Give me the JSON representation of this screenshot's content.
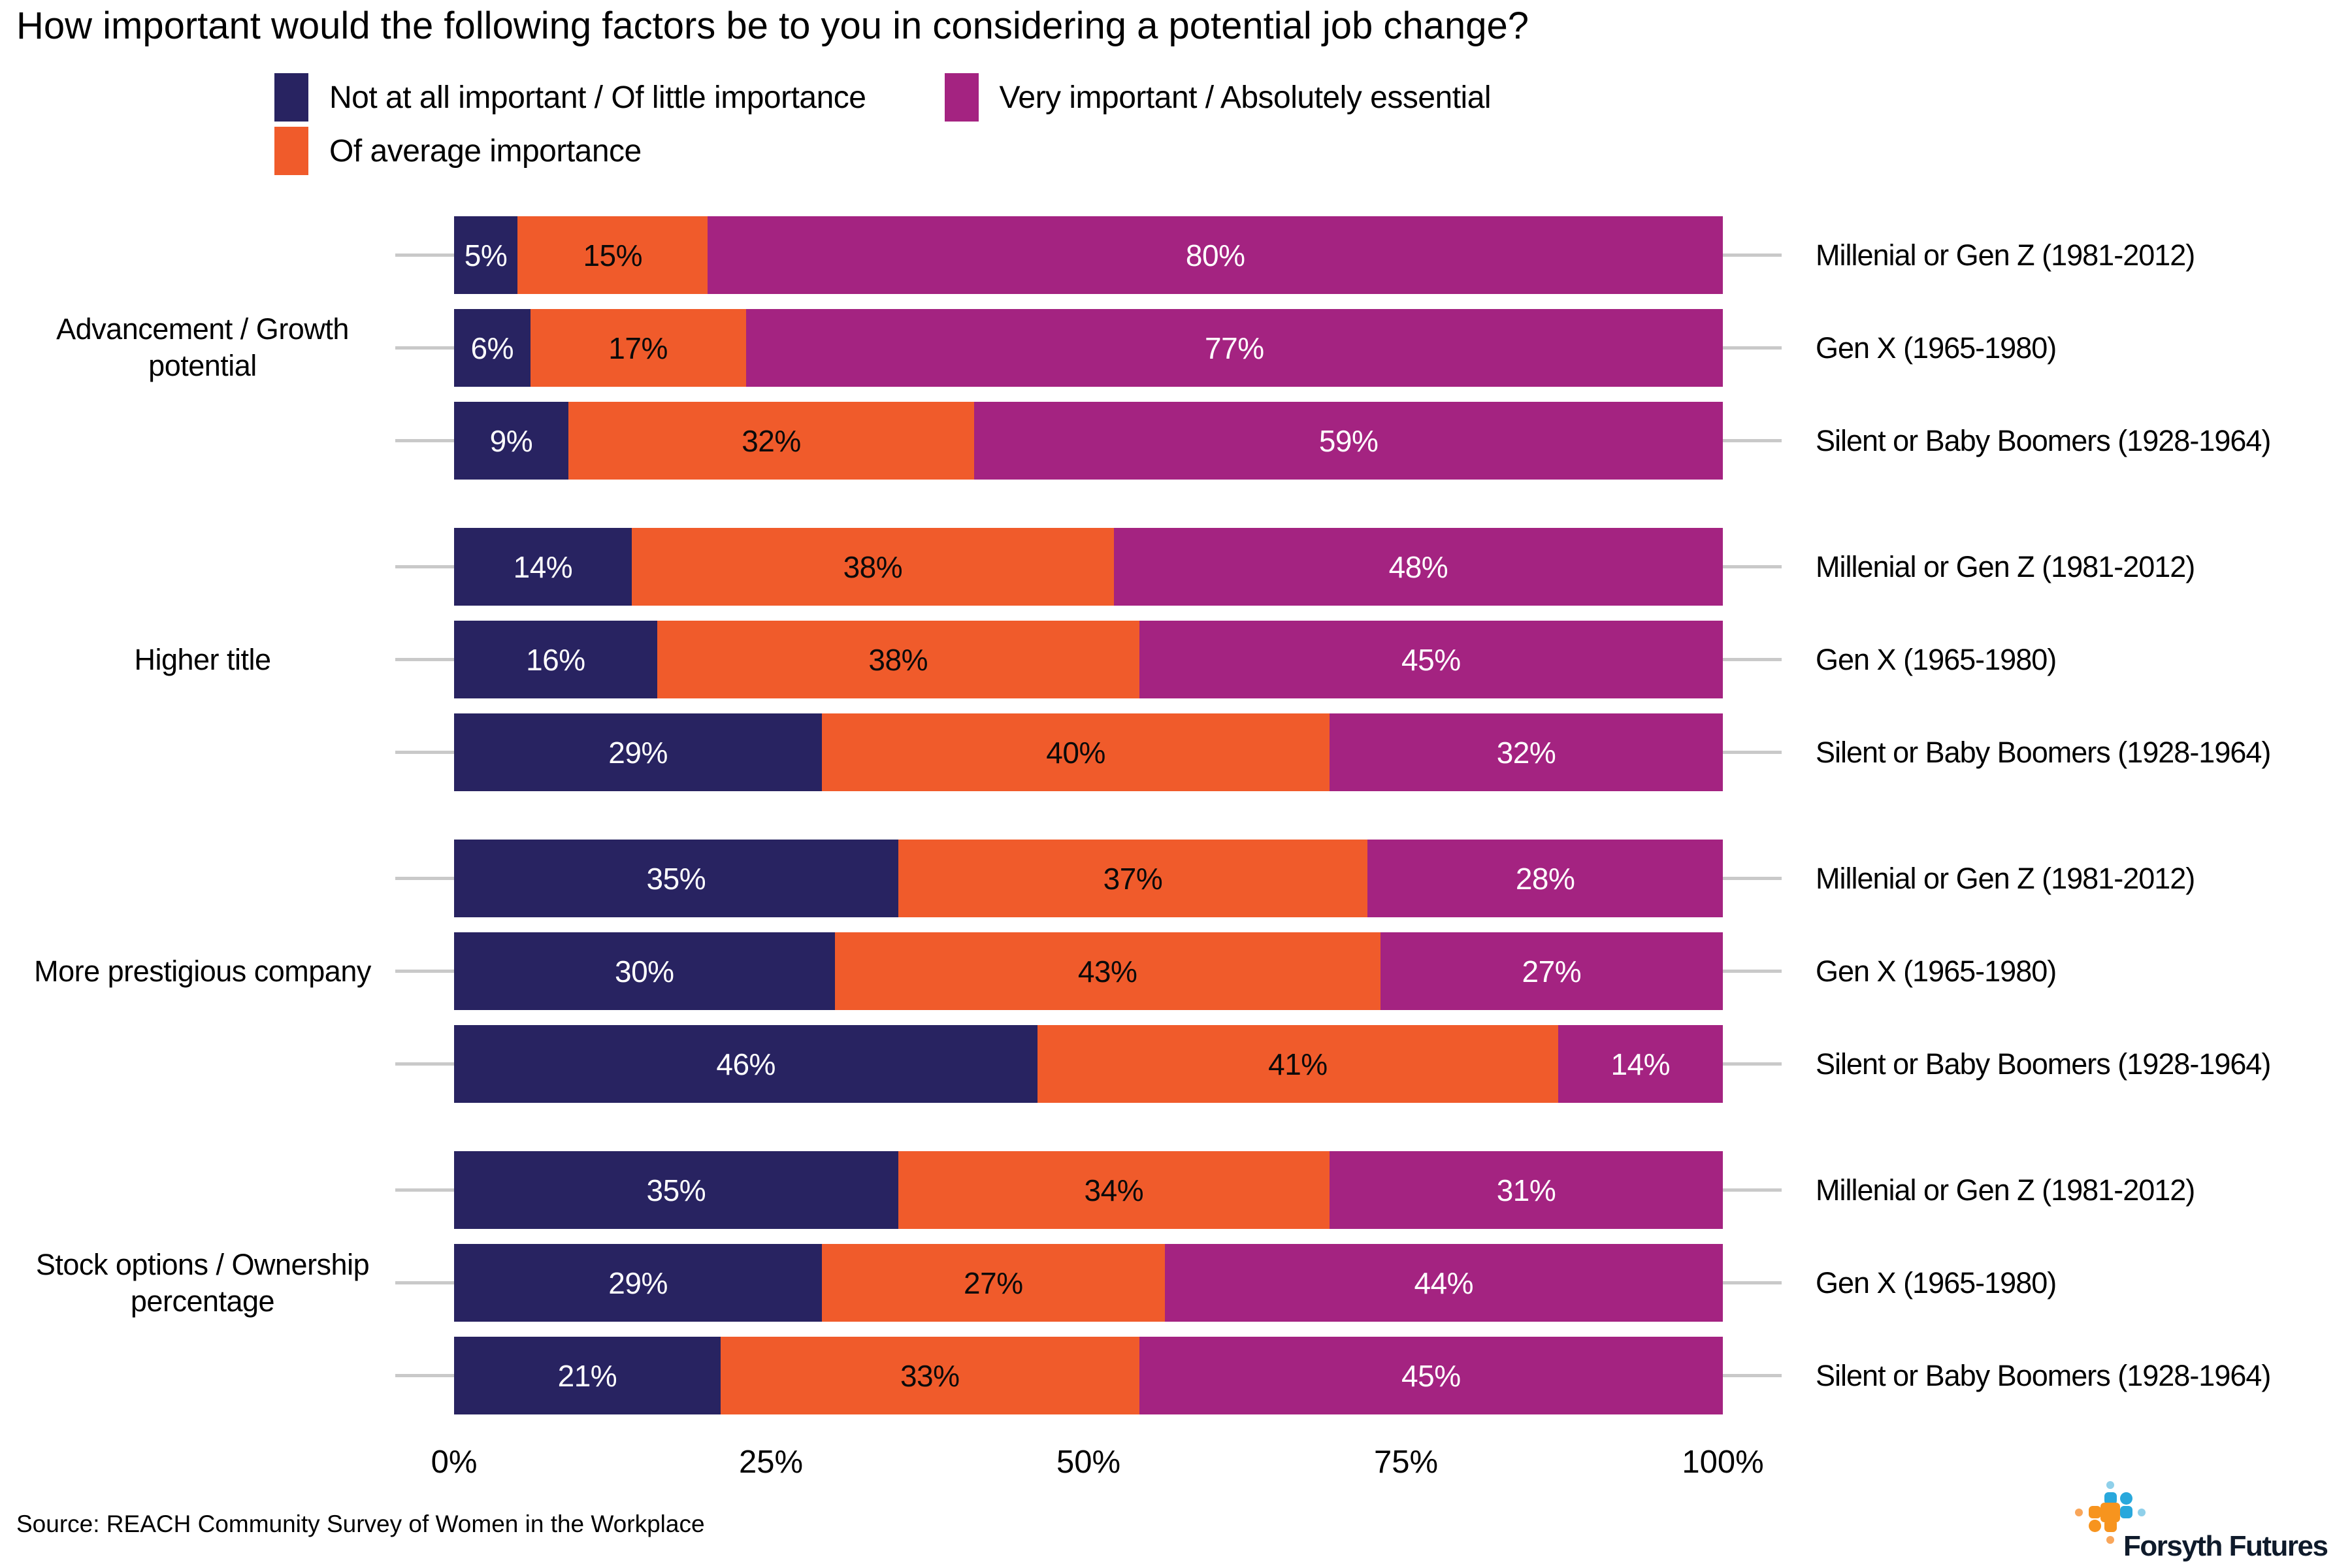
{
  "title": "How important would the following factors be to you in considering a potential job change?",
  "source": "Source: REACH Community Survey of Women in the Workplace",
  "logo": {
    "brand": "Forsyth Futures",
    "icon": "forsyth-futures-dots-icon"
  },
  "colors": {
    "not_important": "#282361",
    "average_importance": "#f05b2b",
    "very_important": "#a42381",
    "axis_tick": "#c9c9c9",
    "logo_orange": "#f7941e",
    "logo_orange_light": "#f9a65a",
    "logo_blue": "#29a8dc",
    "logo_blue_light": "#8fd0ea"
  },
  "chart_data": {
    "type": "bar",
    "stacked": true,
    "orientation": "horizontal",
    "grid": false,
    "legend_position": "top",
    "x_axis": {
      "ticks": [
        "0%",
        "25%",
        "50%",
        "75%",
        "100%"
      ],
      "range": [
        0,
        100
      ]
    },
    "series": [
      {
        "name": "Not at all important / Of little importance",
        "color": "#282361"
      },
      {
        "name": "Of average importance",
        "color": "#f05b2b"
      },
      {
        "name": "Very important / Absolutely essential",
        "color": "#a42381"
      }
    ],
    "groups": [
      {
        "factor": "Advancement / Growth\npotential",
        "rows": [
          {
            "generation": "Millenial or Gen Z (1981-2012)",
            "values": [
              5,
              15,
              80
            ],
            "labels": [
              "5%",
              "15%",
              "80%"
            ]
          },
          {
            "generation": "Gen X (1965-1980)",
            "values": [
              6,
              17,
              77
            ],
            "labels": [
              "6%",
              "17%",
              "77%"
            ]
          },
          {
            "generation": "Silent or Baby Boomers (1928-1964)",
            "values": [
              9,
              32,
              59
            ],
            "labels": [
              "9%",
              "32%",
              "59%"
            ]
          }
        ]
      },
      {
        "factor": "Higher title",
        "rows": [
          {
            "generation": "Millenial or Gen Z (1981-2012)",
            "values": [
              14,
              38,
              48
            ],
            "labels": [
              "14%",
              "38%",
              "48%"
            ]
          },
          {
            "generation": "Gen X (1965-1980)",
            "values": [
              16,
              38,
              45
            ],
            "labels": [
              "16%",
              "38%",
              "45%"
            ]
          },
          {
            "generation": "Silent or Baby Boomers (1928-1964)",
            "values": [
              29,
              40,
              32
            ],
            "labels": [
              "29%",
              "40%",
              "32%"
            ]
          }
        ]
      },
      {
        "factor": "More prestigious company",
        "rows": [
          {
            "generation": "Millenial or Gen Z (1981-2012)",
            "values": [
              35,
              37,
              28
            ],
            "labels": [
              "35%",
              "37%",
              "28%"
            ]
          },
          {
            "generation": "Gen X (1965-1980)",
            "values": [
              30,
              43,
              27
            ],
            "labels": [
              "30%",
              "43%",
              "27%"
            ]
          },
          {
            "generation": "Silent or Baby Boomers (1928-1964)",
            "values": [
              46,
              41,
              14
            ],
            "labels": [
              "46%",
              "41%",
              "14%"
            ]
          }
        ]
      },
      {
        "factor": "Stock options / Ownership\npercentage",
        "rows": [
          {
            "generation": "Millenial or Gen Z (1981-2012)",
            "values": [
              35,
              34,
              31
            ],
            "labels": [
              "35%",
              "34%",
              "31%"
            ]
          },
          {
            "generation": "Gen X (1965-1980)",
            "values": [
              29,
              27,
              44
            ],
            "labels": [
              "29%",
              "27%",
              "44%"
            ]
          },
          {
            "generation": "Silent or Baby Boomers (1928-1964)",
            "values": [
              21,
              33,
              45
            ],
            "labels": [
              "21%",
              "33%",
              "45%"
            ]
          }
        ]
      }
    ]
  }
}
